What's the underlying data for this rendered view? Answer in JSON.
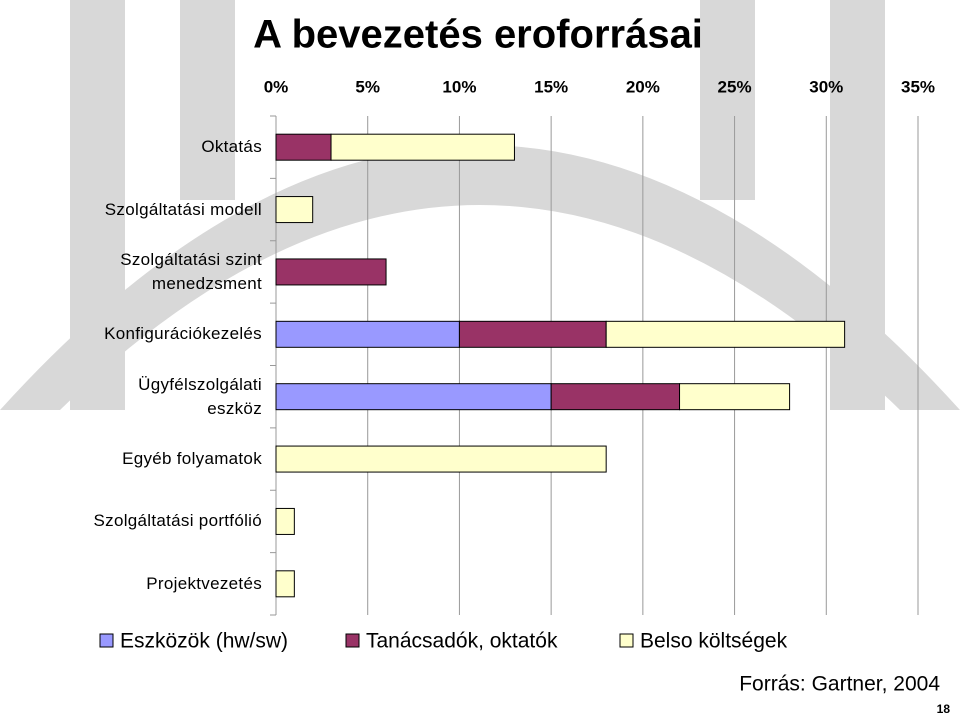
{
  "chart_data": {
    "type": "stacked_barh",
    "title": "A bevezetés eroforrásai",
    "categories": [
      "Oktatás",
      "Szolgáltatási modell",
      "Szolgáltatási szint\nmenedzsment",
      "Konfigurációkezelés",
      "Ügyfélszolgálati\neszköz",
      "Egyéb folyamatok",
      "Szolgáltatási portfólió",
      "Projektvezetés"
    ],
    "series": [
      {
        "name": "Eszközök (hw/sw)",
        "color": "#9999ff",
        "values": [
          0,
          0,
          0,
          10,
          15,
          0,
          0,
          0
        ]
      },
      {
        "name": "Tanácsadók, oktatók",
        "color": "#993366",
        "values": [
          3,
          0,
          6,
          8,
          7,
          0,
          0,
          0
        ]
      },
      {
        "name": "Belso költségek",
        "color": "#ffffcc",
        "values": [
          10,
          2,
          0,
          13,
          6,
          18,
          1,
          1
        ]
      }
    ],
    "xlim": [
      0,
      35
    ],
    "xticks": [
      {
        "value": 0,
        "label": "0%"
      },
      {
        "value": 5,
        "label": "5%"
      },
      {
        "value": 10,
        "label": "10%"
      },
      {
        "value": 15,
        "label": "15%"
      },
      {
        "value": 20,
        "label": "20%"
      },
      {
        "value": 25,
        "label": "25%"
      },
      {
        "value": 30,
        "label": "30%"
      },
      {
        "value": 35,
        "label": "35%"
      }
    ],
    "grid": true,
    "legend": "bottom",
    "source": "Forrás: Gartner, 2004",
    "page_number": "18"
  }
}
